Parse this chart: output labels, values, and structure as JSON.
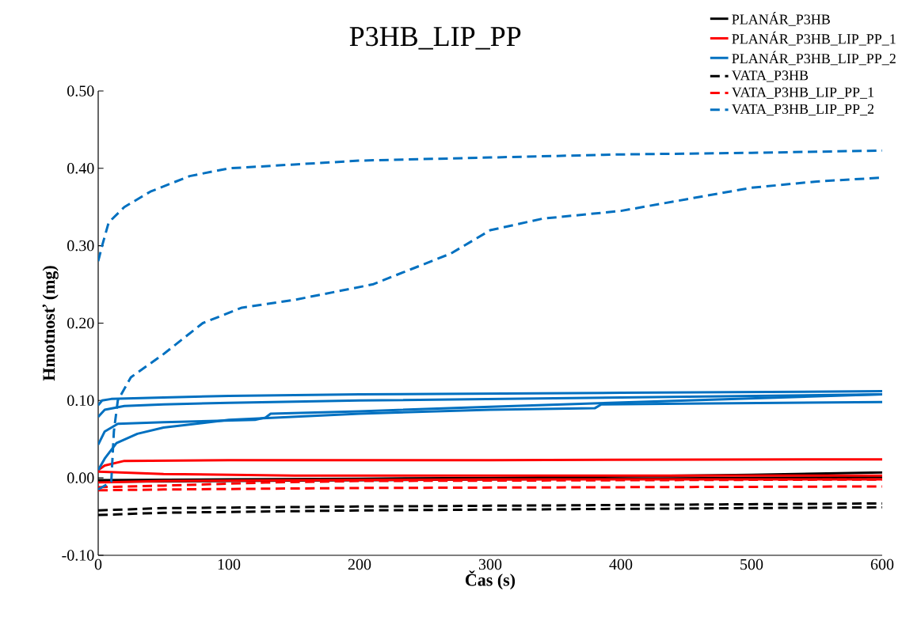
{
  "chart_data": {
    "type": "line",
    "title": "P3HB_LIP_PP",
    "xlabel": "Čas (s)",
    "ylabel": "Hmotnosť (mg)",
    "xlim": [
      0,
      600
    ],
    "xticks": [
      0,
      100,
      200,
      300,
      400,
      500,
      600
    ],
    "ylim": [
      -0.1,
      0.5
    ],
    "yticks": [
      {
        "value": -0.1,
        "label": "-0.10"
      },
      {
        "value": 0,
        "label": "0.00"
      },
      {
        "value": 0.1,
        "label": "0.10"
      },
      {
        "value": 0.2,
        "label": "0.20"
      },
      {
        "value": 0.3,
        "label": "0.30"
      },
      {
        "value": 0.4,
        "label": "0.40"
      },
      {
        "value": 0.5,
        "label": "0.50"
      }
    ],
    "legend": "top right",
    "marker": "none",
    "series": [
      {
        "name": "PLANÁR_P3HB",
        "color": "#000000",
        "line_style": "solid",
        "x": [
          0,
          100,
          200,
          300,
          400,
          500,
          600
        ],
        "values": [
          -0.003,
          -0.002,
          -0.001,
          0.0,
          0.002,
          0.004,
          0.007
        ]
      },
      {
        "color": "#000000",
        "line_style": "solid",
        "x": [
          0,
          100,
          200,
          300,
          400,
          500,
          600
        ],
        "values": [
          -0.005,
          -0.004,
          -0.003,
          -0.002,
          -0.001,
          0.0,
          0.001
        ]
      },
      {
        "name": "PLANÁR_P3HB_LIP_PP_1",
        "color": "#ff0000",
        "line_style": "solid",
        "x": [
          0,
          5,
          20,
          100,
          300,
          600
        ],
        "values": [
          0.01,
          0.016,
          0.022,
          0.023,
          0.023,
          0.024
        ]
      },
      {
        "color": "#ff0000",
        "line_style": "solid",
        "x": [
          0,
          50,
          150,
          300,
          600
        ],
        "values": [
          0.008,
          0.005,
          0.003,
          0.003,
          0.003
        ]
      },
      {
        "color": "#ff0000",
        "line_style": "solid",
        "x": [
          0,
          50,
          150,
          300,
          600
        ],
        "values": [
          -0.006,
          -0.004,
          -0.003,
          -0.002,
          -0.002
        ]
      },
      {
        "name": "PLANÁR_P3HB_LIP_PP_2",
        "color": "#0070c0",
        "line_style": "solid",
        "x": [
          0,
          3,
          10,
          50,
          100,
          200,
          400,
          600
        ],
        "values": [
          0.094,
          0.1,
          0.102,
          0.104,
          0.106,
          0.108,
          0.11,
          0.112
        ]
      },
      {
        "color": "#0070c0",
        "line_style": "solid",
        "x": [
          0,
          5,
          20,
          50,
          100,
          200,
          400,
          600
        ],
        "values": [
          0.079,
          0.088,
          0.093,
          0.095,
          0.097,
          0.1,
          0.104,
          0.108
        ]
      },
      {
        "color": "#0070c0",
        "line_style": "solid",
        "x": [
          0,
          5,
          15,
          50,
          120,
          128,
          132,
          200,
          300,
          450,
          600
        ],
        "values": [
          0.043,
          0.06,
          0.07,
          0.072,
          0.075,
          0.078,
          0.083,
          0.086,
          0.092,
          0.1,
          0.108
        ]
      },
      {
        "color": "#0070c0",
        "line_style": "solid",
        "x": [
          0,
          5,
          14,
          30,
          50,
          100,
          200,
          300,
          380,
          385,
          450,
          600
        ],
        "values": [
          0.01,
          0.025,
          0.045,
          0.057,
          0.065,
          0.075,
          0.083,
          0.088,
          0.09,
          0.095,
          0.096,
          0.098
        ]
      },
      {
        "name": "VATA_P3HB",
        "color": "#000000",
        "line_style": "dashed",
        "x": [
          0,
          50,
          200,
          400,
          600
        ],
        "values": [
          -0.042,
          -0.039,
          -0.037,
          -0.035,
          -0.033
        ]
      },
      {
        "color": "#000000",
        "line_style": "dashed",
        "x": [
          0,
          50,
          200,
          400,
          600
        ],
        "values": [
          -0.048,
          -0.045,
          -0.042,
          -0.04,
          -0.038
        ]
      },
      {
        "name": "VATA_P3HB_LIP_PP_1",
        "color": "#ff0000",
        "line_style": "dashed",
        "x": [
          0,
          50,
          200,
          400,
          600
        ],
        "values": [
          -0.016,
          -0.015,
          -0.013,
          -0.012,
          -0.011
        ]
      },
      {
        "color": "#ff0000",
        "line_style": "dashed",
        "x": [
          0,
          50,
          128,
          200,
          400,
          600
        ],
        "values": [
          -0.012,
          -0.01,
          -0.006,
          -0.004,
          -0.003,
          -0.002
        ]
      },
      {
        "name": "VATA_P3HB_LIP_PP_2",
        "color": "#0070c0",
        "line_style": "dashed",
        "x": [
          0,
          3,
          8,
          20,
          40,
          70,
          100,
          150,
          200,
          300,
          400,
          500,
          600
        ],
        "values": [
          0.28,
          0.3,
          0.33,
          0.35,
          0.37,
          0.39,
          0.4,
          0.405,
          0.41,
          0.414,
          0.418,
          0.42,
          0.423
        ]
      },
      {
        "color": "#0070c0",
        "line_style": "dashed",
        "x": [
          0,
          10,
          12,
          15,
          25,
          50,
          80,
          110,
          150,
          180,
          210,
          240,
          270,
          300,
          340,
          400,
          450,
          500,
          550,
          600
        ],
        "values": [
          -0.015,
          -0.005,
          0.06,
          0.1,
          0.13,
          0.16,
          0.2,
          0.22,
          0.23,
          0.24,
          0.25,
          0.27,
          0.29,
          0.32,
          0.335,
          0.345,
          0.36,
          0.375,
          0.383,
          0.388
        ]
      }
    ]
  }
}
